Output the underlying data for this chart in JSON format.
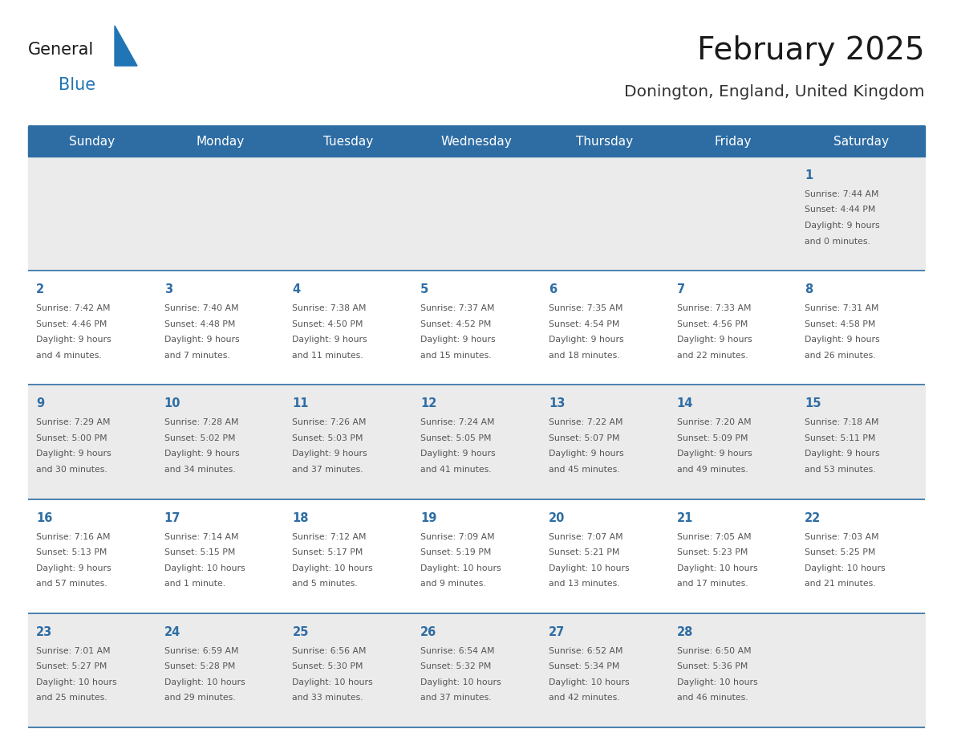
{
  "title": "February 2025",
  "subtitle": "Donington, England, United Kingdom",
  "days_of_week": [
    "Sunday",
    "Monday",
    "Tuesday",
    "Wednesday",
    "Thursday",
    "Friday",
    "Saturday"
  ],
  "header_bg": "#2E6DA4",
  "header_text_color": "#FFFFFF",
  "cell_bg_odd": "#EBEBEB",
  "cell_bg_even": "#FFFFFF",
  "border_color": "#2E6DA4",
  "day_number_color": "#2E6DA4",
  "info_text_color": "#555555",
  "title_color": "#1a1a1a",
  "subtitle_color": "#333333",
  "calendar_data": [
    [
      {
        "day": null,
        "info": ""
      },
      {
        "day": null,
        "info": ""
      },
      {
        "day": null,
        "info": ""
      },
      {
        "day": null,
        "info": ""
      },
      {
        "day": null,
        "info": ""
      },
      {
        "day": null,
        "info": ""
      },
      {
        "day": 1,
        "info": "Sunrise: 7:44 AM\nSunset: 4:44 PM\nDaylight: 9 hours\nand 0 minutes."
      }
    ],
    [
      {
        "day": 2,
        "info": "Sunrise: 7:42 AM\nSunset: 4:46 PM\nDaylight: 9 hours\nand 4 minutes."
      },
      {
        "day": 3,
        "info": "Sunrise: 7:40 AM\nSunset: 4:48 PM\nDaylight: 9 hours\nand 7 minutes."
      },
      {
        "day": 4,
        "info": "Sunrise: 7:38 AM\nSunset: 4:50 PM\nDaylight: 9 hours\nand 11 minutes."
      },
      {
        "day": 5,
        "info": "Sunrise: 7:37 AM\nSunset: 4:52 PM\nDaylight: 9 hours\nand 15 minutes."
      },
      {
        "day": 6,
        "info": "Sunrise: 7:35 AM\nSunset: 4:54 PM\nDaylight: 9 hours\nand 18 minutes."
      },
      {
        "day": 7,
        "info": "Sunrise: 7:33 AM\nSunset: 4:56 PM\nDaylight: 9 hours\nand 22 minutes."
      },
      {
        "day": 8,
        "info": "Sunrise: 7:31 AM\nSunset: 4:58 PM\nDaylight: 9 hours\nand 26 minutes."
      }
    ],
    [
      {
        "day": 9,
        "info": "Sunrise: 7:29 AM\nSunset: 5:00 PM\nDaylight: 9 hours\nand 30 minutes."
      },
      {
        "day": 10,
        "info": "Sunrise: 7:28 AM\nSunset: 5:02 PM\nDaylight: 9 hours\nand 34 minutes."
      },
      {
        "day": 11,
        "info": "Sunrise: 7:26 AM\nSunset: 5:03 PM\nDaylight: 9 hours\nand 37 minutes."
      },
      {
        "day": 12,
        "info": "Sunrise: 7:24 AM\nSunset: 5:05 PM\nDaylight: 9 hours\nand 41 minutes."
      },
      {
        "day": 13,
        "info": "Sunrise: 7:22 AM\nSunset: 5:07 PM\nDaylight: 9 hours\nand 45 minutes."
      },
      {
        "day": 14,
        "info": "Sunrise: 7:20 AM\nSunset: 5:09 PM\nDaylight: 9 hours\nand 49 minutes."
      },
      {
        "day": 15,
        "info": "Sunrise: 7:18 AM\nSunset: 5:11 PM\nDaylight: 9 hours\nand 53 minutes."
      }
    ],
    [
      {
        "day": 16,
        "info": "Sunrise: 7:16 AM\nSunset: 5:13 PM\nDaylight: 9 hours\nand 57 minutes."
      },
      {
        "day": 17,
        "info": "Sunrise: 7:14 AM\nSunset: 5:15 PM\nDaylight: 10 hours\nand 1 minute."
      },
      {
        "day": 18,
        "info": "Sunrise: 7:12 AM\nSunset: 5:17 PM\nDaylight: 10 hours\nand 5 minutes."
      },
      {
        "day": 19,
        "info": "Sunrise: 7:09 AM\nSunset: 5:19 PM\nDaylight: 10 hours\nand 9 minutes."
      },
      {
        "day": 20,
        "info": "Sunrise: 7:07 AM\nSunset: 5:21 PM\nDaylight: 10 hours\nand 13 minutes."
      },
      {
        "day": 21,
        "info": "Sunrise: 7:05 AM\nSunset: 5:23 PM\nDaylight: 10 hours\nand 17 minutes."
      },
      {
        "day": 22,
        "info": "Sunrise: 7:03 AM\nSunset: 5:25 PM\nDaylight: 10 hours\nand 21 minutes."
      }
    ],
    [
      {
        "day": 23,
        "info": "Sunrise: 7:01 AM\nSunset: 5:27 PM\nDaylight: 10 hours\nand 25 minutes."
      },
      {
        "day": 24,
        "info": "Sunrise: 6:59 AM\nSunset: 5:28 PM\nDaylight: 10 hours\nand 29 minutes."
      },
      {
        "day": 25,
        "info": "Sunrise: 6:56 AM\nSunset: 5:30 PM\nDaylight: 10 hours\nand 33 minutes."
      },
      {
        "day": 26,
        "info": "Sunrise: 6:54 AM\nSunset: 5:32 PM\nDaylight: 10 hours\nand 37 minutes."
      },
      {
        "day": 27,
        "info": "Sunrise: 6:52 AM\nSunset: 5:34 PM\nDaylight: 10 hours\nand 42 minutes."
      },
      {
        "day": 28,
        "info": "Sunrise: 6:50 AM\nSunset: 5:36 PM\nDaylight: 10 hours\nand 46 minutes."
      },
      {
        "day": null,
        "info": ""
      }
    ]
  ],
  "logo_color_general": "#1a1a1a",
  "logo_color_blue": "#2175B5",
  "logo_triangle_color": "#2175B5",
  "fig_width": 11.88,
  "fig_height": 9.18,
  "dpi": 100
}
